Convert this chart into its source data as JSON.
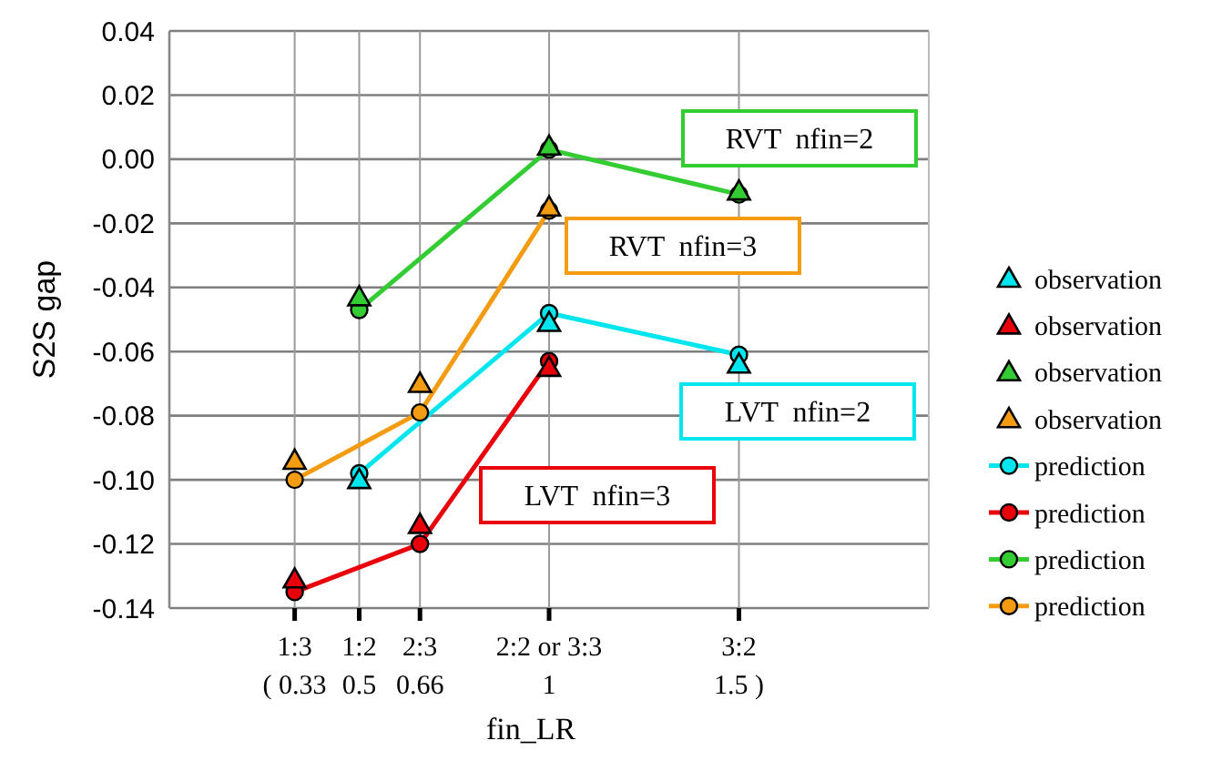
{
  "chart_data": {
    "type": "line",
    "xlabel": "fin_LR",
    "ylabel": "S2S gap",
    "xlim": [
      0,
      2
    ],
    "xticks": [
      {
        "value": 0.33,
        "label": "( 0.33"
      },
      0.5,
      0.66,
      1,
      {
        "value": 1.5,
        "label": "1.5 )"
      }
    ],
    "ylim": [
      -0.14,
      0.04
    ],
    "yticks": [
      -0.14,
      -0.12,
      {
        "value": -0.1,
        "label": "-0.10"
      },
      -0.08,
      -0.06,
      -0.04,
      -0.02,
      {
        "value": 0,
        "label": "0.00"
      },
      0.02,
      0.04
    ],
    "grid": true,
    "legend": "right",
    "series": [
      {
        "name": "observation",
        "type": "scatter",
        "marker": "triangle",
        "color": "#00e5ee",
        "x": [
          0.5,
          1,
          1.5
        ],
        "values": [
          -0.1,
          -0.051,
          -0.064
        ]
      },
      {
        "name": "observation",
        "type": "scatter",
        "marker": "triangle",
        "color": "#e8000b",
        "x": [
          0.33,
          0.66,
          1
        ],
        "values": [
          -0.131,
          -0.114,
          -0.065
        ]
      },
      {
        "name": "observation",
        "type": "scatter",
        "marker": "triangle",
        "color": "#33cc33",
        "x": [
          0.5,
          1,
          1.5
        ],
        "values": [
          -0.043,
          0.004,
          -0.01
        ]
      },
      {
        "name": "observation",
        "type": "scatter",
        "marker": "triangle",
        "color": "#f39c12",
        "x": [
          0.33,
          0.66,
          1
        ],
        "values": [
          -0.094,
          -0.07,
          -0.015
        ]
      },
      {
        "name": "prediction",
        "type": "line",
        "marker": "circle",
        "line_style": "solid",
        "color": "#00e5ee",
        "x": [
          0.5,
          1,
          1.5
        ],
        "values": [
          -0.098,
          -0.048,
          -0.061
        ]
      },
      {
        "name": "prediction",
        "type": "line",
        "marker": "circle",
        "line_style": "solid",
        "color": "#e8000b",
        "x": [
          0.33,
          0.66,
          1
        ],
        "values": [
          -0.135,
          -0.12,
          -0.063
        ]
      },
      {
        "name": "prediction",
        "type": "line",
        "marker": "circle",
        "line_style": "solid",
        "color": "#33cc33",
        "x": [
          0.5,
          1,
          1.5
        ],
        "values": [
          -0.047,
          0.003,
          -0.011
        ]
      },
      {
        "name": "prediction",
        "type": "line",
        "marker": "circle",
        "line_style": "solid",
        "color": "#f39c12",
        "x": [
          0.33,
          0.66,
          1
        ],
        "values": [
          -0.1,
          -0.079,
          -0.016
        ]
      }
    ],
    "annotations": [
      "RVT  nfin=2",
      "RVT  nfin=3",
      "LVT  nfin=2",
      "LVT  nfin=3",
      "1:3",
      "1:2",
      "2:3",
      "2:2 or 3:3",
      "3:2"
    ]
  }
}
